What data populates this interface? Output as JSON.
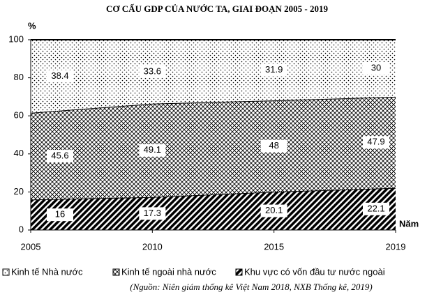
{
  "chart_data": {
    "type": "stacked-area",
    "title": "CƠ CẤU GDP CỦA NƯỚC TA, GIAI ĐOẠN 2005 - 2019",
    "y_label": "%",
    "x_label": "Năm",
    "categories": [
      "2005",
      "2010",
      "2015",
      "2019"
    ],
    "series": [
      {
        "name": "Kinh tế Nhà nước",
        "color": "#000000",
        "pattern": "dots",
        "values": [
          38.4,
          33.6,
          31.9,
          30
        ]
      },
      {
        "name": "Kinh tế  ngoài nhà nước",
        "color": "#000000",
        "pattern": "crosshatch",
        "values": [
          45.6,
          49.1,
          48,
          47.9
        ]
      },
      {
        "name": "Khu vực có vốn đầu tư nước ngoài",
        "color": "#000000",
        "pattern": "hatch",
        "values": [
          16,
          17.3,
          20.1,
          22.1
        ]
      }
    ],
    "ylim": [
      0,
      100
    ],
    "yticks": [
      0,
      20,
      40,
      60,
      80,
      100
    ],
    "source": "(Nguồn: Niên giám thống kê Việt Nam 2018, NXB Thống kê, 2019)"
  }
}
